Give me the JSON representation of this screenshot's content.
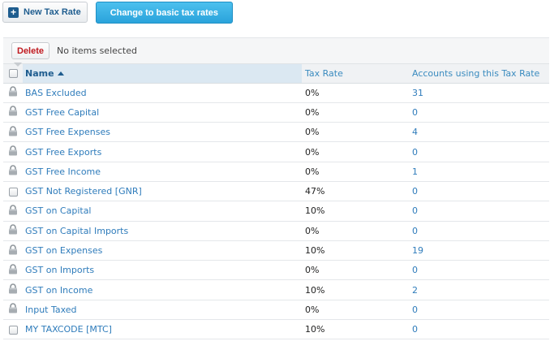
{
  "toolbar": {
    "new_label": "New Tax Rate",
    "basic_label": "Change to basic tax rates"
  },
  "action_bar": {
    "delete_label": "Delete",
    "selection_text": "No items selected"
  },
  "columns": {
    "name": "Name",
    "rate": "Tax Rate",
    "accounts": "Accounts using this Tax Rate"
  },
  "rows": [
    {
      "icon": "lock-icon",
      "name": "BAS Excluded",
      "rate": "0%",
      "accounts": "31"
    },
    {
      "icon": "lock-icon",
      "name": "GST Free Capital",
      "rate": "0%",
      "accounts": "0"
    },
    {
      "icon": "lock-icon",
      "name": "GST Free Expenses",
      "rate": "0%",
      "accounts": "4"
    },
    {
      "icon": "lock-icon",
      "name": "GST Free Exports",
      "rate": "0%",
      "accounts": "0"
    },
    {
      "icon": "lock-icon",
      "name": "GST Free Income",
      "rate": "0%",
      "accounts": "1"
    },
    {
      "icon": "checkbox",
      "name": "GST Not Registered [GNR]",
      "rate": "47%",
      "accounts": "0"
    },
    {
      "icon": "lock-icon",
      "name": "GST on Capital",
      "rate": "10%",
      "accounts": "0"
    },
    {
      "icon": "lock-icon",
      "name": "GST on Capital Imports",
      "rate": "0%",
      "accounts": "0"
    },
    {
      "icon": "lock-icon",
      "name": "GST on Expenses",
      "rate": "10%",
      "accounts": "19"
    },
    {
      "icon": "lock-icon",
      "name": "GST on Imports",
      "rate": "0%",
      "accounts": "0"
    },
    {
      "icon": "lock-icon",
      "name": "GST on Income",
      "rate": "10%",
      "accounts": "2"
    },
    {
      "icon": "lock-icon",
      "name": "Input Taxed",
      "rate": "0%",
      "accounts": "0"
    },
    {
      "icon": "checkbox",
      "name": "MY TAXCODE [MTC]",
      "rate": "10%",
      "accounts": "0"
    }
  ]
}
